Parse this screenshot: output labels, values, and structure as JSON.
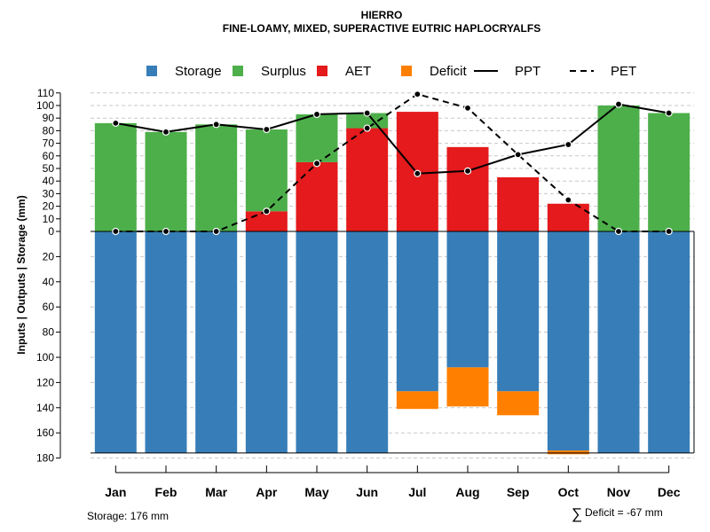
{
  "chart_data": {
    "type": "bar",
    "title": "HIERRO",
    "subtitle": "FINE-LOAMY, MIXED, SUPERACTIVE EUTRIC HAPLOCRYALFS",
    "ylabel": "Inputs | Outputs | Storage     (mm)",
    "categories": [
      "Jan",
      "Feb",
      "Mar",
      "Apr",
      "May",
      "Jun",
      "Jul",
      "Aug",
      "Sep",
      "Oct",
      "Nov",
      "Dec"
    ],
    "ylim": [
      -180,
      110
    ],
    "y_ticks_upper": [
      0,
      10,
      20,
      30,
      40,
      50,
      60,
      70,
      80,
      90,
      100,
      110
    ],
    "y_ticks_lower": [
      20,
      40,
      60,
      80,
      100,
      120,
      140,
      160,
      180
    ],
    "legend": [
      {
        "name": "Storage",
        "symbol": "square",
        "color": "#377EB8"
      },
      {
        "name": "Surplus",
        "symbol": "square",
        "color": "#4DAF4A"
      },
      {
        "name": "AET",
        "symbol": "square",
        "color": "#E41A1C"
      },
      {
        "name": "Deficit",
        "symbol": "square",
        "color": "#FF7F00"
      },
      {
        "name": "PPT",
        "symbol": "line",
        "color": "#000000"
      },
      {
        "name": "PET",
        "symbol": "dashed",
        "color": "#000000"
      }
    ],
    "series": [
      {
        "name": "AET",
        "color": "#E41A1C",
        "values": [
          0,
          0,
          0,
          16,
          55,
          82,
          95,
          67,
          43,
          22,
          0,
          0
        ]
      },
      {
        "name": "Surplus",
        "color": "#4DAF4A",
        "values": [
          86,
          79,
          85,
          65,
          38,
          12,
          0,
          0,
          0,
          0,
          100,
          94
        ]
      },
      {
        "name": "Storage",
        "color": "#377EB8",
        "values": [
          176,
          176,
          176,
          176,
          176,
          176,
          127,
          108,
          127,
          174,
          176,
          176
        ]
      },
      {
        "name": "Deficit",
        "color": "#FF7F00",
        "values": [
          0,
          0,
          0,
          0,
          0,
          0,
          14,
          31,
          19,
          3,
          0,
          0
        ]
      },
      {
        "name": "PPT",
        "color": "#000000",
        "values": [
          86,
          79,
          85,
          81,
          93,
          94,
          46,
          48,
          61,
          69,
          101,
          94
        ]
      },
      {
        "name": "PET",
        "color": "#000000",
        "values": [
          0,
          0,
          0,
          16,
          54,
          82,
          109,
          98,
          61,
          25,
          0,
          0
        ]
      }
    ],
    "storage_capacity": 176
  },
  "footer": {
    "storage": "Storage: 176 mm",
    "deficit_symbol": "∑",
    "deficit": "Deficit = -67 mm"
  }
}
